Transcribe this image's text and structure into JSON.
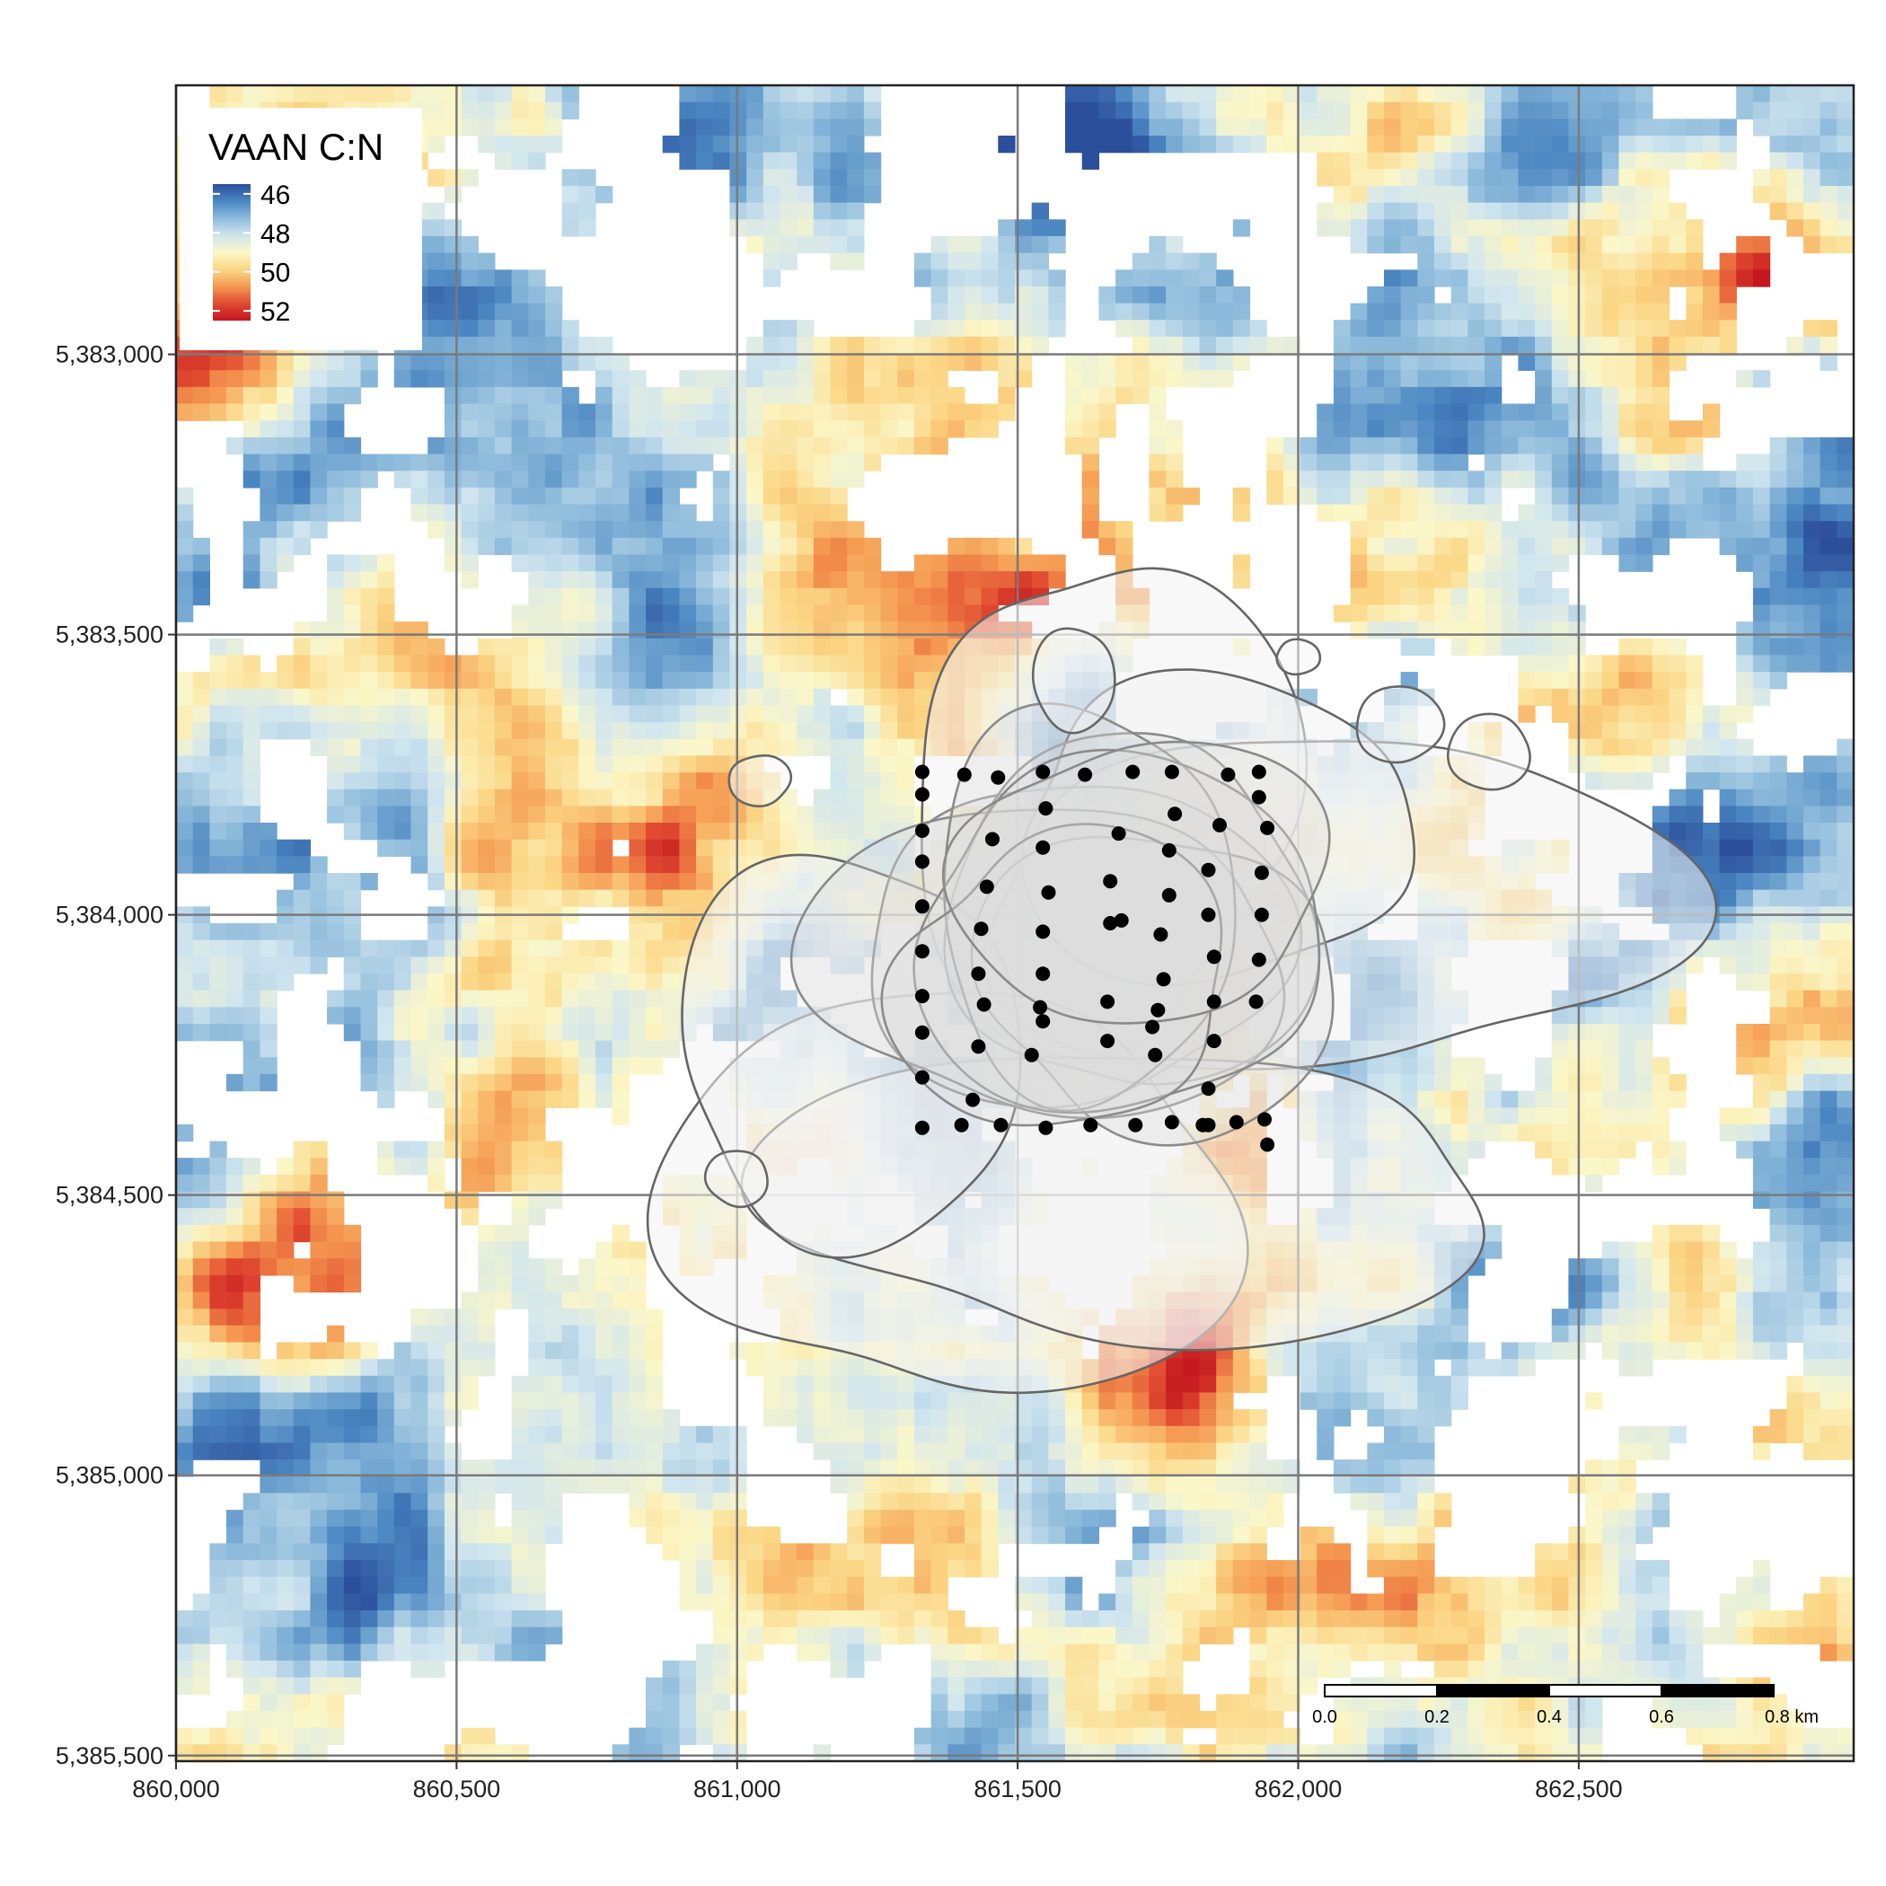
{
  "legend": {
    "title": "VAAN C:N",
    "ticks": [
      "46",
      "48",
      "50",
      "52"
    ],
    "range": [
      45.5,
      52.5
    ],
    "palette": [
      "#2c4f9c",
      "#4a86c1",
      "#8dbbdb",
      "#d1e6ef",
      "#fbf7c8",
      "#fbd685",
      "#f59a52",
      "#e0492f",
      "#c3161f"
    ]
  },
  "scale_bar": {
    "labels": [
      "0.0",
      "0.2",
      "0.4",
      "0.6",
      "0.8 km"
    ]
  },
  "axes": {
    "x_ticks": [
      "860,000",
      "860,500",
      "861,000",
      "861,500",
      "862,000",
      "862,500"
    ],
    "y_ticks": [
      "5,385,500",
      "5,385,000",
      "5,384,500",
      "5,384,000",
      "5,383,500",
      "5,383,000"
    ],
    "x_range": [
      860000,
      862990
    ],
    "y_range": [
      5382990,
      5385980
    ]
  },
  "chart_data": {
    "type": "heatmap",
    "variable": "VAAN C:N",
    "crs_units": "m",
    "xlim": [
      860000,
      862990
    ],
    "ylim": [
      5382990,
      5385980
    ],
    "x_ticks": [
      860000,
      860500,
      861000,
      861500,
      862000,
      862500
    ],
    "y_ticks": [
      5383000,
      5383500,
      5384000,
      5384500,
      5385000,
      5385500
    ],
    "grid": true,
    "legend_position": "top-left",
    "color_range": [
      45.5,
      52.5
    ],
    "sample_points": [
      [
        861330,
        5384755
      ],
      [
        861405,
        5384750
      ],
      [
        861465,
        5384745
      ],
      [
        861545,
        5384755
      ],
      [
        861620,
        5384750
      ],
      [
        861705,
        5384755
      ],
      [
        861775,
        5384755
      ],
      [
        861875,
        5384750
      ],
      [
        861930,
        5384755
      ],
      [
        861330,
        5384715
      ],
      [
        861550,
        5384690
      ],
      [
        861780,
        5384680
      ],
      [
        861930,
        5384710
      ],
      [
        861330,
        5384650
      ],
      [
        861455,
        5384635
      ],
      [
        861680,
        5384645
      ],
      [
        861860,
        5384660
      ],
      [
        861945,
        5384655
      ],
      [
        861330,
        5384595
      ],
      [
        861545,
        5384620
      ],
      [
        861770,
        5384615
      ],
      [
        861840,
        5384580
      ],
      [
        861935,
        5384575
      ],
      [
        861445,
        5384550
      ],
      [
        861555,
        5384540
      ],
      [
        861665,
        5384560
      ],
      [
        861770,
        5384535
      ],
      [
        861330,
        5384515
      ],
      [
        861685,
        5384490
      ],
      [
        861840,
        5384500
      ],
      [
        861935,
        5384500
      ],
      [
        861435,
        5384475
      ],
      [
        861545,
        5384470
      ],
      [
        861665,
        5384485
      ],
      [
        861755,
        5384465
      ],
      [
        861330,
        5384435
      ],
      [
        861850,
        5384425
      ],
      [
        861930,
        5384420
      ],
      [
        861430,
        5384395
      ],
      [
        861545,
        5384395
      ],
      [
        861760,
        5384385
      ],
      [
        861330,
        5384355
      ],
      [
        861440,
        5384340
      ],
      [
        861540,
        5384335
      ],
      [
        861660,
        5384345
      ],
      [
        861750,
        5384330
      ],
      [
        861850,
        5384345
      ],
      [
        861925,
        5384345
      ],
      [
        861330,
        5384290
      ],
      [
        861545,
        5384310
      ],
      [
        861660,
        5384275
      ],
      [
        861740,
        5384300
      ],
      [
        861850,
        5384275
      ],
      [
        861430,
        5384265
      ],
      [
        861525,
        5384250
      ],
      [
        861745,
        5384250
      ],
      [
        861330,
        5384210
      ],
      [
        861840,
        5384190
      ],
      [
        861420,
        5384170
      ],
      [
        861840,
        5384125
      ],
      [
        861330,
        5384120
      ],
      [
        861400,
        5384125
      ],
      [
        861470,
        5384125
      ],
      [
        861550,
        5384120
      ],
      [
        861630,
        5384125
      ],
      [
        861710,
        5384125
      ],
      [
        861775,
        5384130
      ],
      [
        861830,
        5384125
      ],
      [
        861890,
        5384130
      ],
      [
        861940,
        5384135
      ],
      [
        861945,
        5384090
      ]
    ],
    "hotspots_blue": [
      [
        860470,
        5385620,
        46.0
      ],
      [
        861640,
        5385860,
        45.8
      ],
      [
        861110,
        5385880,
        46.6
      ],
      [
        860260,
        5385250,
        46.5
      ],
      [
        860640,
        5383120,
        46.7
      ],
      [
        862340,
        5383850,
        47.1
      ],
      [
        861340,
        5384300,
        47.4
      ],
      [
        862120,
        5384300,
        47.0
      ],
      [
        862840,
        5384700,
        47.1
      ],
      [
        861730,
        5383390,
        47.1
      ],
      [
        860340,
        5383680,
        47.3
      ]
    ],
    "hotspots_red": [
      [
        860240,
        5383780,
        51.5
      ],
      [
        860280,
        5384020,
        51.6
      ],
      [
        861790,
        5383700,
        51.6
      ],
      [
        861810,
        5383560,
        51.0
      ],
      [
        862700,
        5384270,
        51.2
      ],
      [
        860070,
        5385480,
        51.5
      ],
      [
        861000,
        5384720,
        51.0
      ],
      [
        862880,
        5385650,
        51.4
      ],
      [
        861460,
        5385020,
        50.6
      ]
    ]
  }
}
